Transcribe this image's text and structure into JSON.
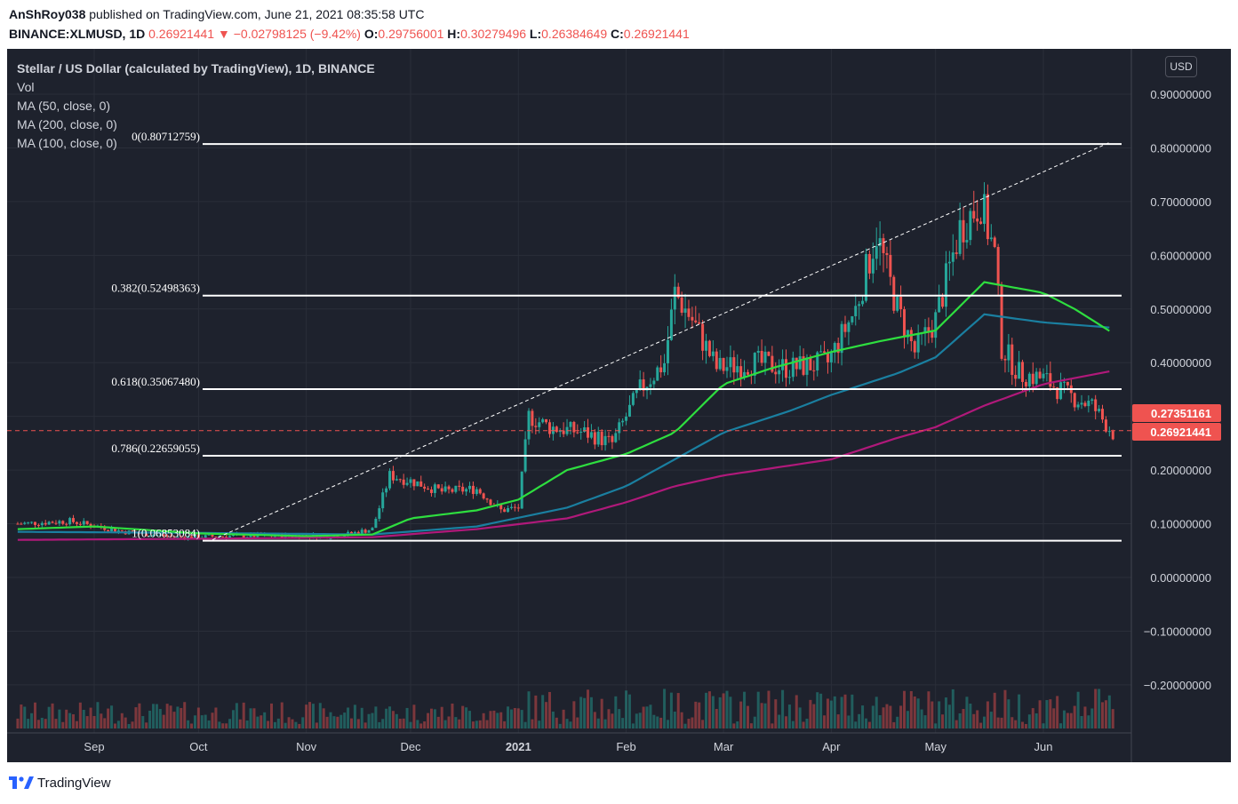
{
  "header": {
    "author": "AnShRoy038",
    "published": " published on TradingView.com, June 21, 2021 08:35:58 UTC",
    "symbol": "BINANCE:XLMUSD, 1D",
    "last": "0.26921441",
    "change_arrow": "▼",
    "change": "−0.02798125 (−9.42%)",
    "o_label": "O:",
    "o": "0.29756001",
    "h_label": "H:",
    "h": "0.30279496",
    "l_label": "L:",
    "l": "0.26384649",
    "c_label": "C:",
    "c": "0.26921441"
  },
  "legend": {
    "title": "Stellar / US Dollar (calculated by TradingView), 1D, BINANCE",
    "vol": "Vol",
    "ma50": "MA (50, close, 0)",
    "ma200": "MA (200, close, 0)",
    "ma100": "MA (100, close, 0)"
  },
  "currency_button": "USD",
  "footer": {
    "brand": "TradingView"
  },
  "colors": {
    "background": "#1e222d",
    "up": "#26a69a",
    "down": "#ef5350",
    "ma50": "#2ede3f",
    "ma100": "#1a7fa0",
    "ma200": "#b0197a",
    "fib": "#ffffff"
  },
  "chart_data": {
    "type": "candlestick",
    "y_axis_ticks": [
      "0.90000000",
      "0.80000000",
      "0.70000000",
      "0.60000000",
      "0.50000000",
      "0.40000000",
      "0.30000000",
      "0.20000000",
      "0.10000000",
      "0.00000000",
      "−0.10000000",
      "−0.20000000"
    ],
    "y_tick_values": [
      0.9,
      0.8,
      0.7,
      0.6,
      0.5,
      0.4,
      0.3,
      0.2,
      0.1,
      0.0,
      -0.1,
      -0.2
    ],
    "x_axis_ticks": [
      "Sep",
      "Oct",
      "Nov",
      "Dec",
      "2021",
      "Feb",
      "Mar",
      "Apr",
      "May",
      "Jun"
    ],
    "x_tick_dates": [
      "2020-09-01",
      "2020-10-01",
      "2020-11-01",
      "2020-12-01",
      "2021-01-01",
      "2021-02-01",
      "2021-03-01",
      "2021-04-01",
      "2021-05-01",
      "2021-06-01"
    ],
    "price_labels": [
      {
        "value": 0.27351161,
        "text": "0.27351161"
      },
      {
        "value": 0.26921441,
        "text": "0.26921441"
      }
    ],
    "fibonacci": [
      {
        "label": "0(0.80712759)",
        "value": 0.80712759
      },
      {
        "label": "0.382(0.52498363)",
        "value": 0.52498363
      },
      {
        "label": "0.618(0.35067480)",
        "value": 0.3506748
      },
      {
        "label": "0.786(0.22659055)",
        "value": 0.22659055
      },
      {
        "label": "1(0.06853084)",
        "value": 0.06853084
      }
    ],
    "trendline": {
      "from": {
        "date": "2020-10-05",
        "value": 0.07
      },
      "to": {
        "date": "2021-06-20",
        "value": 0.81
      }
    },
    "series_keypoints": {
      "close": [
        [
          "2020-08-10",
          0.1
        ],
        [
          "2020-08-25",
          0.105
        ],
        [
          "2020-09-10",
          0.085
        ],
        [
          "2020-09-25",
          0.075
        ],
        [
          "2020-10-10",
          0.077
        ],
        [
          "2020-10-25",
          0.078
        ],
        [
          "2020-11-10",
          0.077
        ],
        [
          "2020-11-20",
          0.09
        ],
        [
          "2020-11-25",
          0.19
        ],
        [
          "2020-12-01",
          0.18
        ],
        [
          "2020-12-10",
          0.16
        ],
        [
          "2020-12-20",
          0.165
        ],
        [
          "2020-12-27",
          0.125
        ],
        [
          "2021-01-01",
          0.13
        ],
        [
          "2021-01-04",
          0.3
        ],
        [
          "2021-01-10",
          0.28
        ],
        [
          "2021-01-20",
          0.27
        ],
        [
          "2021-01-28",
          0.25
        ],
        [
          "2021-02-05",
          0.35
        ],
        [
          "2021-02-12",
          0.4
        ],
        [
          "2021-02-15",
          0.53
        ],
        [
          "2021-02-20",
          0.48
        ],
        [
          "2021-02-27",
          0.39
        ],
        [
          "2021-03-10",
          0.4
        ],
        [
          "2021-03-20",
          0.39
        ],
        [
          "2021-03-31",
          0.4
        ],
        [
          "2021-04-08",
          0.5
        ],
        [
          "2021-04-14",
          0.64
        ],
        [
          "2021-04-20",
          0.5
        ],
        [
          "2021-04-25",
          0.42
        ],
        [
          "2021-05-01",
          0.48
        ],
        [
          "2021-05-08",
          0.65
        ],
        [
          "2021-05-14",
          0.7
        ],
        [
          "2021-05-18",
          0.6
        ],
        [
          "2021-05-20",
          0.43
        ],
        [
          "2021-05-25",
          0.38
        ],
        [
          "2021-06-01",
          0.37
        ],
        [
          "2021-06-08",
          0.34
        ],
        [
          "2021-06-15",
          0.32
        ],
        [
          "2021-06-21",
          0.269
        ]
      ],
      "ma50": [
        [
          "2020-08-10",
          0.09
        ],
        [
          "2020-09-01",
          0.095
        ],
        [
          "2020-10-01",
          0.082
        ],
        [
          "2020-11-01",
          0.077
        ],
        [
          "2020-11-20",
          0.08
        ],
        [
          "2020-12-01",
          0.11
        ],
        [
          "2020-12-20",
          0.125
        ],
        [
          "2021-01-01",
          0.145
        ],
        [
          "2021-01-15",
          0.2
        ],
        [
          "2021-02-01",
          0.23
        ],
        [
          "2021-02-15",
          0.27
        ],
        [
          "2021-03-01",
          0.36
        ],
        [
          "2021-03-15",
          0.39
        ],
        [
          "2021-04-01",
          0.42
        ],
        [
          "2021-04-15",
          0.44
        ],
        [
          "2021-05-01",
          0.46
        ],
        [
          "2021-05-15",
          0.55
        ],
        [
          "2021-06-01",
          0.53
        ],
        [
          "2021-06-10",
          0.5
        ],
        [
          "2021-06-21",
          0.455
        ]
      ],
      "ma100": [
        [
          "2020-08-10",
          0.085
        ],
        [
          "2020-10-01",
          0.083
        ],
        [
          "2020-11-20",
          0.08
        ],
        [
          "2020-12-20",
          0.095
        ],
        [
          "2021-01-15",
          0.13
        ],
        [
          "2021-02-01",
          0.17
        ],
        [
          "2021-02-15",
          0.22
        ],
        [
          "2021-03-01",
          0.27
        ],
        [
          "2021-03-20",
          0.31
        ],
        [
          "2021-04-01",
          0.34
        ],
        [
          "2021-04-20",
          0.38
        ],
        [
          "2021-05-01",
          0.41
        ],
        [
          "2021-05-15",
          0.49
        ],
        [
          "2021-06-01",
          0.475
        ],
        [
          "2021-06-21",
          0.465
        ]
      ],
      "ma200": [
        [
          "2020-08-10",
          0.07
        ],
        [
          "2020-10-01",
          0.072
        ],
        [
          "2020-11-20",
          0.075
        ],
        [
          "2020-12-20",
          0.09
        ],
        [
          "2021-01-15",
          0.11
        ],
        [
          "2021-02-01",
          0.14
        ],
        [
          "2021-02-15",
          0.17
        ],
        [
          "2021-03-01",
          0.19
        ],
        [
          "2021-04-01",
          0.22
        ],
        [
          "2021-04-20",
          0.26
        ],
        [
          "2021-05-01",
          0.28
        ],
        [
          "2021-05-15",
          0.32
        ],
        [
          "2021-06-01",
          0.36
        ],
        [
          "2021-06-21",
          0.385
        ]
      ]
    }
  }
}
